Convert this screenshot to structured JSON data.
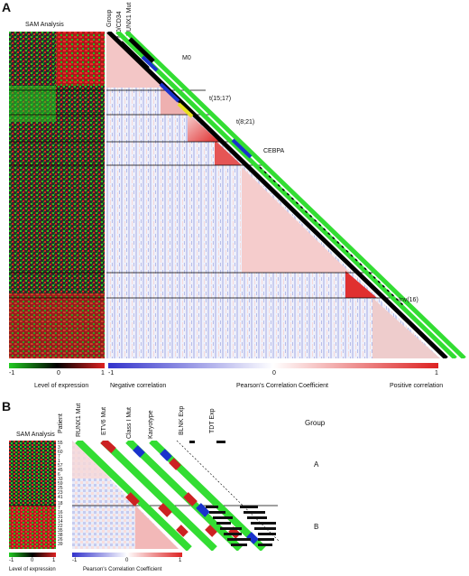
{
  "panel_a": {
    "letter": "A",
    "sam_title": "SAM Analysis",
    "track_labels": [
      "Group",
      "M0/CD34",
      "RUNX1 Mut"
    ],
    "cluster_labels": [
      "M0",
      "t(15;17)",
      "t(8;21)",
      "CEBPA",
      "Inv(16)"
    ],
    "expression_scale": {
      "min": "-1",
      "mid": "0",
      "max": "1",
      "caption": "Level of expression"
    },
    "correlation_scale": {
      "min": "-1",
      "mid": "0",
      "max": "1",
      "caption": "Pearson's Correlation Coefficient",
      "neg_caption": "Negative correlation",
      "pos_caption": "Positive correlation"
    }
  },
  "panel_b": {
    "letter": "B",
    "sam_title": "SAM Analysis",
    "track_labels": [
      "Patient",
      "RUNX1 Mut",
      "ETV6 Mut",
      "Class I Mut",
      "Karyotype",
      "BLNK Exp",
      "TDT Exp"
    ],
    "group_title": "Group",
    "groups": [
      "A",
      "B"
    ],
    "patients": [
      "55",
      "3",
      "60",
      "7",
      "1",
      "57",
      "45",
      "6",
      "33",
      "59",
      "25",
      "23",
      "41",
      "18",
      "7",
      "16",
      "31",
      "14",
      "22",
      "35",
      "38",
      "26",
      "39"
    ],
    "expression_scale": {
      "min": "-1",
      "mid": "0",
      "max": "1",
      "caption": "Level of expression"
    },
    "correlation_scale": {
      "min": "-1",
      "mid": "0",
      "max": "1",
      "caption": "Pearson's Correlation Coefficient"
    }
  },
  "colors": {
    "expr_low": "#22cc22",
    "expr_high": "#dd2222",
    "corr_neg": "#3333cc",
    "corr_pos": "#dd2222",
    "track_green": "#33dd33",
    "track_blue": "#1a33cc",
    "track_red": "#cc2222"
  }
}
